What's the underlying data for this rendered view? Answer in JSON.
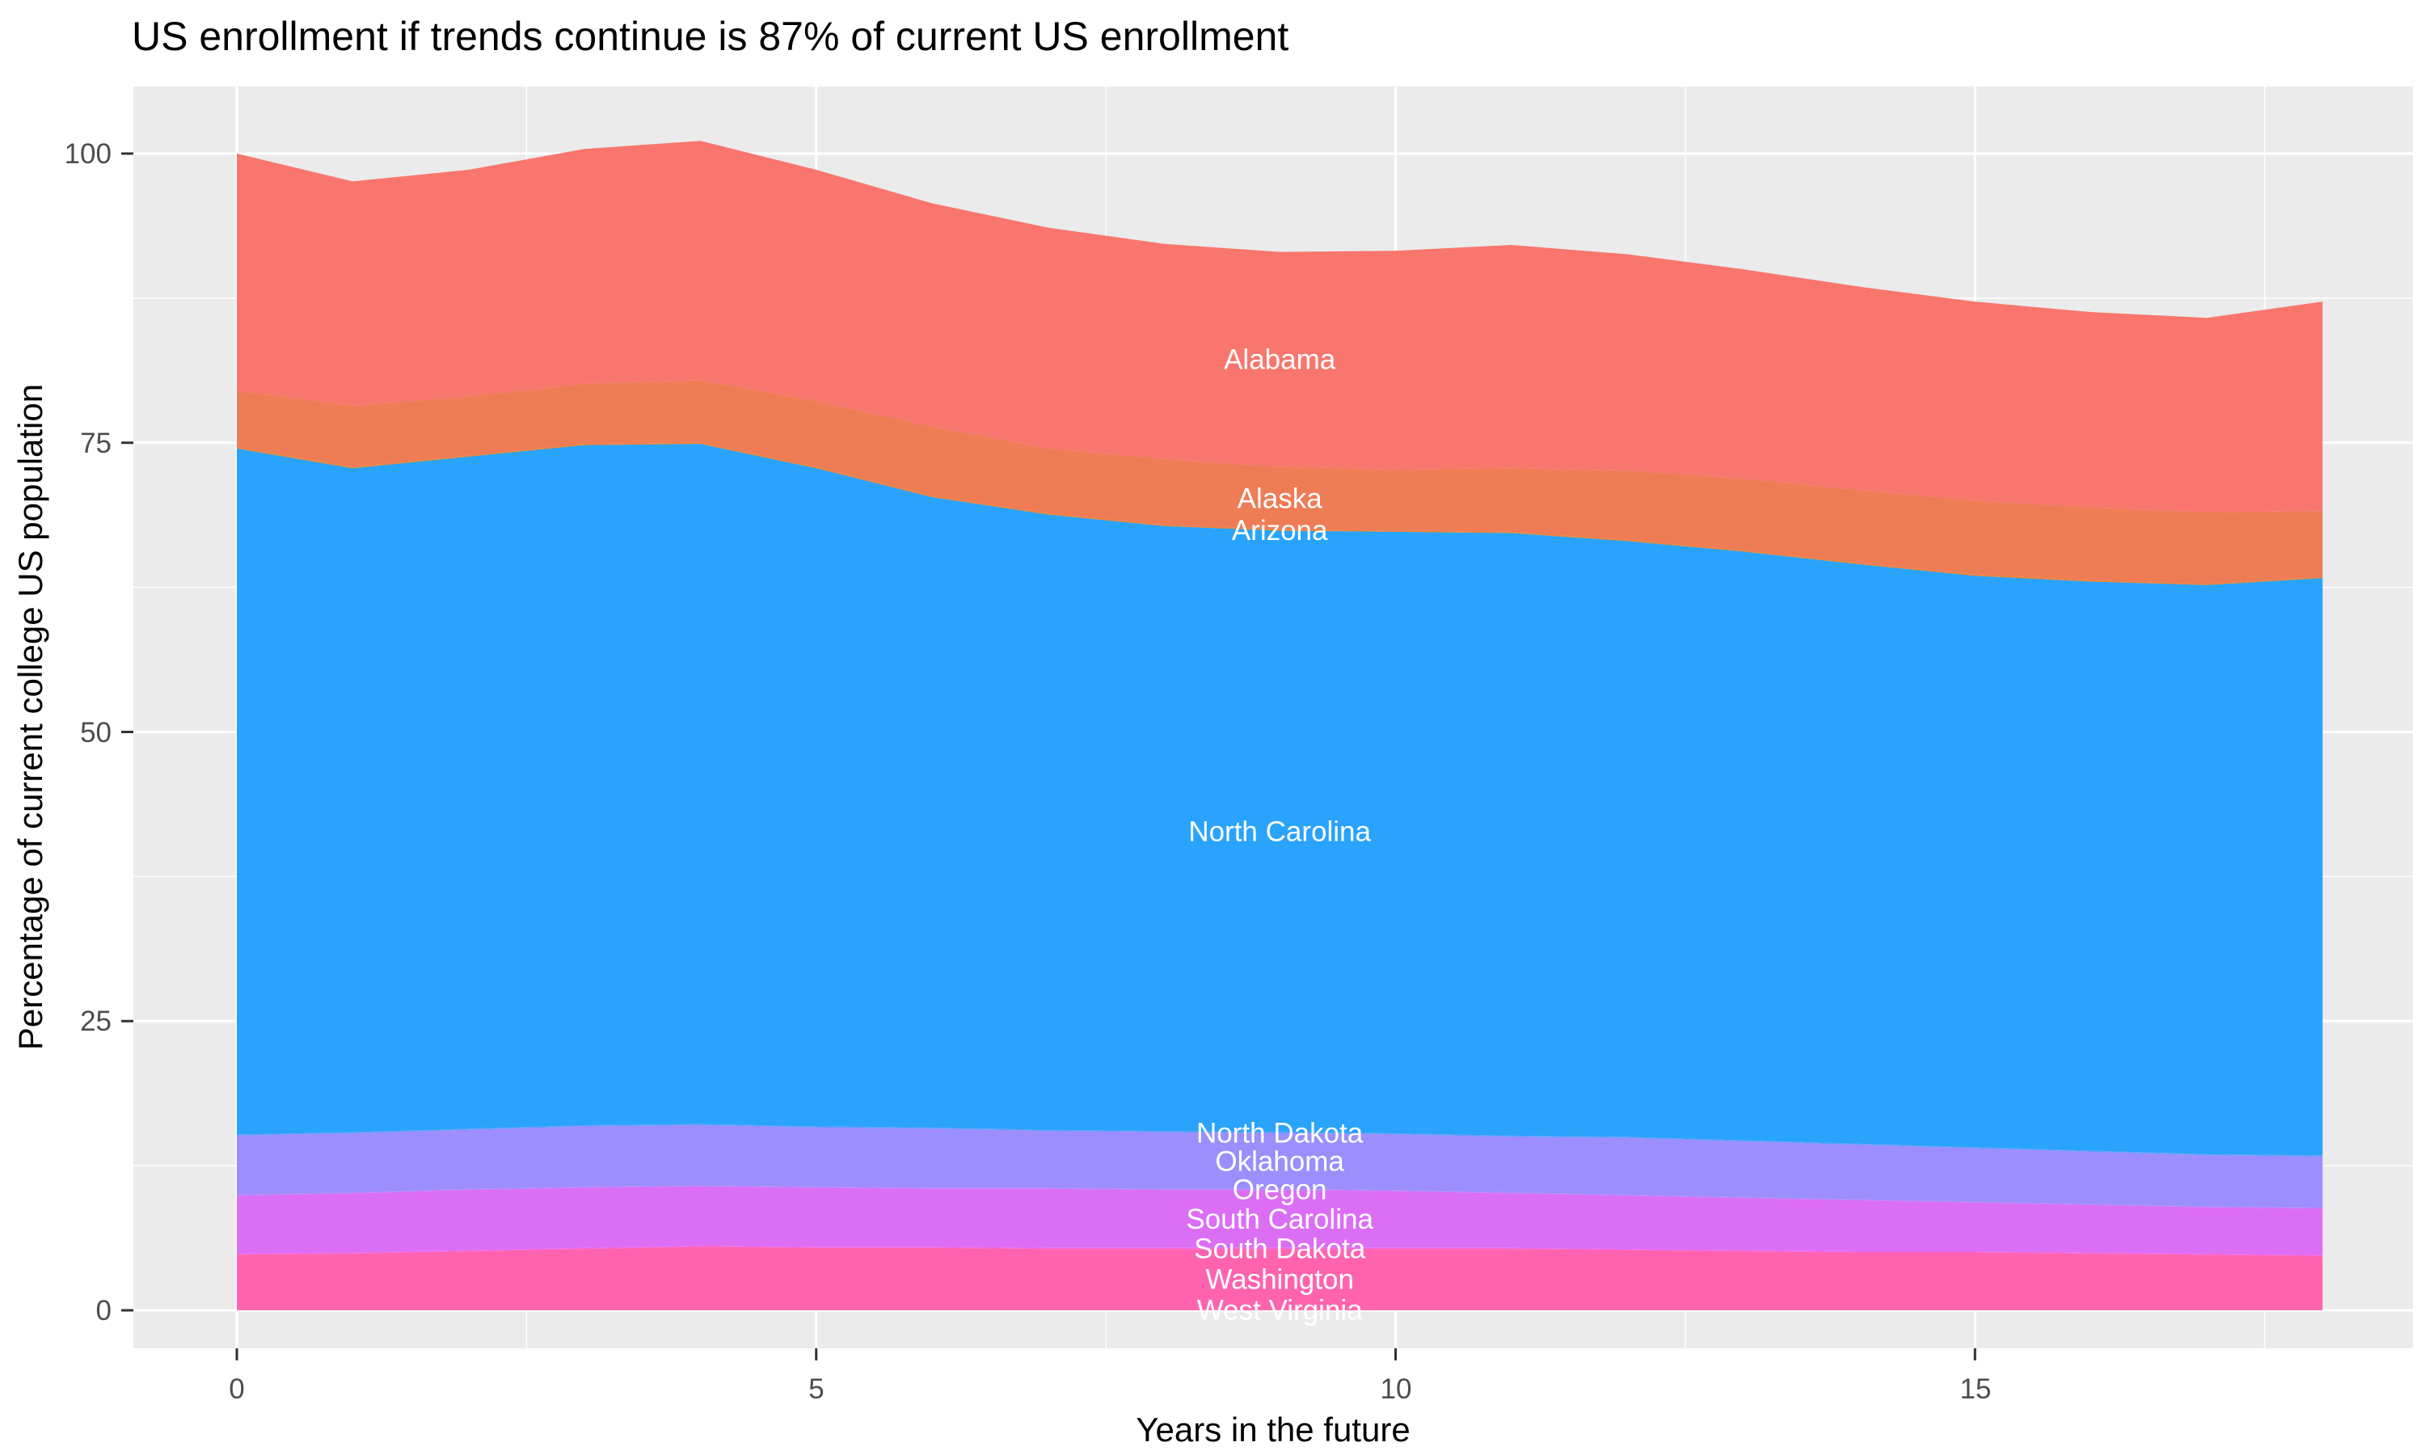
{
  "chart_data": {
    "type": "area",
    "stacked": true,
    "title": "US enrollment if trends continue is 87% of current US enrollment",
    "xlabel": "Years in the future",
    "ylabel": "Percentage of current college US population",
    "legend": "none",
    "grid": "on",
    "panel_background": "#EBEBEB",
    "gridline_color": "#FFFFFF",
    "tick_mark_color": "#333333",
    "tick_text_color": "#4D4D4D",
    "xlim": [
      0,
      18
    ],
    "ylim": [
      0,
      105
    ],
    "x": [
      0,
      1,
      2,
      3,
      4,
      5,
      6,
      7,
      8,
      9,
      10,
      11,
      12,
      13,
      14,
      15,
      16,
      17,
      18
    ],
    "x_ticks": [
      {
        "value": 0,
        "label": "0"
      },
      {
        "value": 5,
        "label": "5"
      },
      {
        "value": 10,
        "label": "10"
      },
      {
        "value": 15,
        "label": "15"
      }
    ],
    "y_ticks": [
      {
        "value": 0,
        "label": "0"
      },
      {
        "value": 25,
        "label": "25"
      },
      {
        "value": 50,
        "label": "50"
      },
      {
        "value": 75,
        "label": "75"
      },
      {
        "value": 100,
        "label": "100"
      }
    ],
    "label_anchor_x": 9,
    "series_bottom_to_top": [
      {
        "name": "West Virginia",
        "color": "#FF6498",
        "values": [
          0.1,
          0.1,
          0.1,
          0.1,
          0.1,
          0.1,
          0.1,
          0.1,
          0.1,
          0.1,
          0.1,
          0.1,
          0.1,
          0.1,
          0.1,
          0.1,
          0.1,
          0.1,
          0.1
        ]
      },
      {
        "name": "Washington",
        "color": "#FF63B0",
        "values": [
          4.7,
          4.8,
          5.0,
          5.2,
          5.4,
          5.3,
          5.3,
          5.2,
          5.2,
          5.2,
          5.2,
          5.2,
          5.1,
          5.0,
          4.9,
          4.9,
          4.8,
          4.7,
          4.6
        ]
      },
      {
        "name": "South Dakota",
        "color": "#F564E3",
        "values": [
          0.1,
          0.1,
          0.1,
          0.1,
          0.1,
          0.1,
          0.1,
          0.1,
          0.1,
          0.1,
          0.1,
          0.1,
          0.1,
          0.1,
          0.1,
          0.1,
          0.1,
          0.1,
          0.1
        ]
      },
      {
        "name": "South Carolina",
        "color": "#DB6EF4",
        "values": [
          5.0,
          5.1,
          5.2,
          5.2,
          5.1,
          5.1,
          5.0,
          5.1,
          5.0,
          5.0,
          4.9,
          4.7,
          4.6,
          4.5,
          4.4,
          4.2,
          4.1,
          4.0,
          4.0
        ]
      },
      {
        "name": "Oregon",
        "color": "#B983FF",
        "values": [
          0.1,
          0.1,
          0.1,
          0.1,
          0.1,
          0.1,
          0.1,
          0.1,
          0.1,
          0.1,
          0.1,
          0.1,
          0.1,
          0.1,
          0.1,
          0.1,
          0.1,
          0.1,
          0.1
        ]
      },
      {
        "name": "Oklahoma",
        "color": "#9C8EFC",
        "values": [
          5.1,
          5.1,
          5.1,
          5.2,
          5.2,
          5.1,
          5.1,
          4.9,
          4.9,
          4.8,
          4.8,
          4.8,
          4.9,
          4.8,
          4.7,
          4.6,
          4.5,
          4.4,
          4.4
        ]
      },
      {
        "name": "North Dakota",
        "color": "#619CFF",
        "values": [
          0.1,
          0.1,
          0.1,
          0.1,
          0.1,
          0.1,
          0.1,
          0.1,
          0.1,
          0.1,
          0.1,
          0.1,
          0.1,
          0.1,
          0.1,
          0.1,
          0.1,
          0.1,
          0.1
        ]
      },
      {
        "name": "North Carolina",
        "color": "#2AA3FC",
        "values": [
          59.3,
          57.4,
          58.1,
          58.8,
          58.8,
          56.9,
          54.5,
          53.2,
          52.3,
          52.0,
          52.0,
          52.1,
          51.5,
          50.9,
          50.1,
          49.4,
          49.2,
          49.2,
          49.9
        ]
      },
      {
        "name": "Arizona",
        "color": "#EA8331",
        "values": [
          0.1,
          0.1,
          0.1,
          0.1,
          0.1,
          0.1,
          0.1,
          0.1,
          0.1,
          0.1,
          0.1,
          0.1,
          0.1,
          0.1,
          0.1,
          0.1,
          0.1,
          0.1,
          0.1
        ]
      },
      {
        "name": "Alaska",
        "color": "#EE7C55",
        "values": [
          4.9,
          5.3,
          5.1,
          5.2,
          5.4,
          5.7,
          6.0,
          5.6,
          5.7,
          5.4,
          5.3,
          5.5,
          6.0,
          6.2,
          6.3,
          6.4,
          6.3,
          6.2,
          5.7
        ]
      },
      {
        "name": "Alabama",
        "color": "#F8766D",
        "values": [
          20.5,
          19.4,
          19.6,
          20.3,
          20.7,
          20.0,
          19.3,
          19.1,
          18.6,
          18.6,
          18.9,
          19.3,
          18.7,
          18.1,
          17.6,
          17.2,
          16.9,
          16.8,
          18.1
        ]
      }
    ]
  }
}
